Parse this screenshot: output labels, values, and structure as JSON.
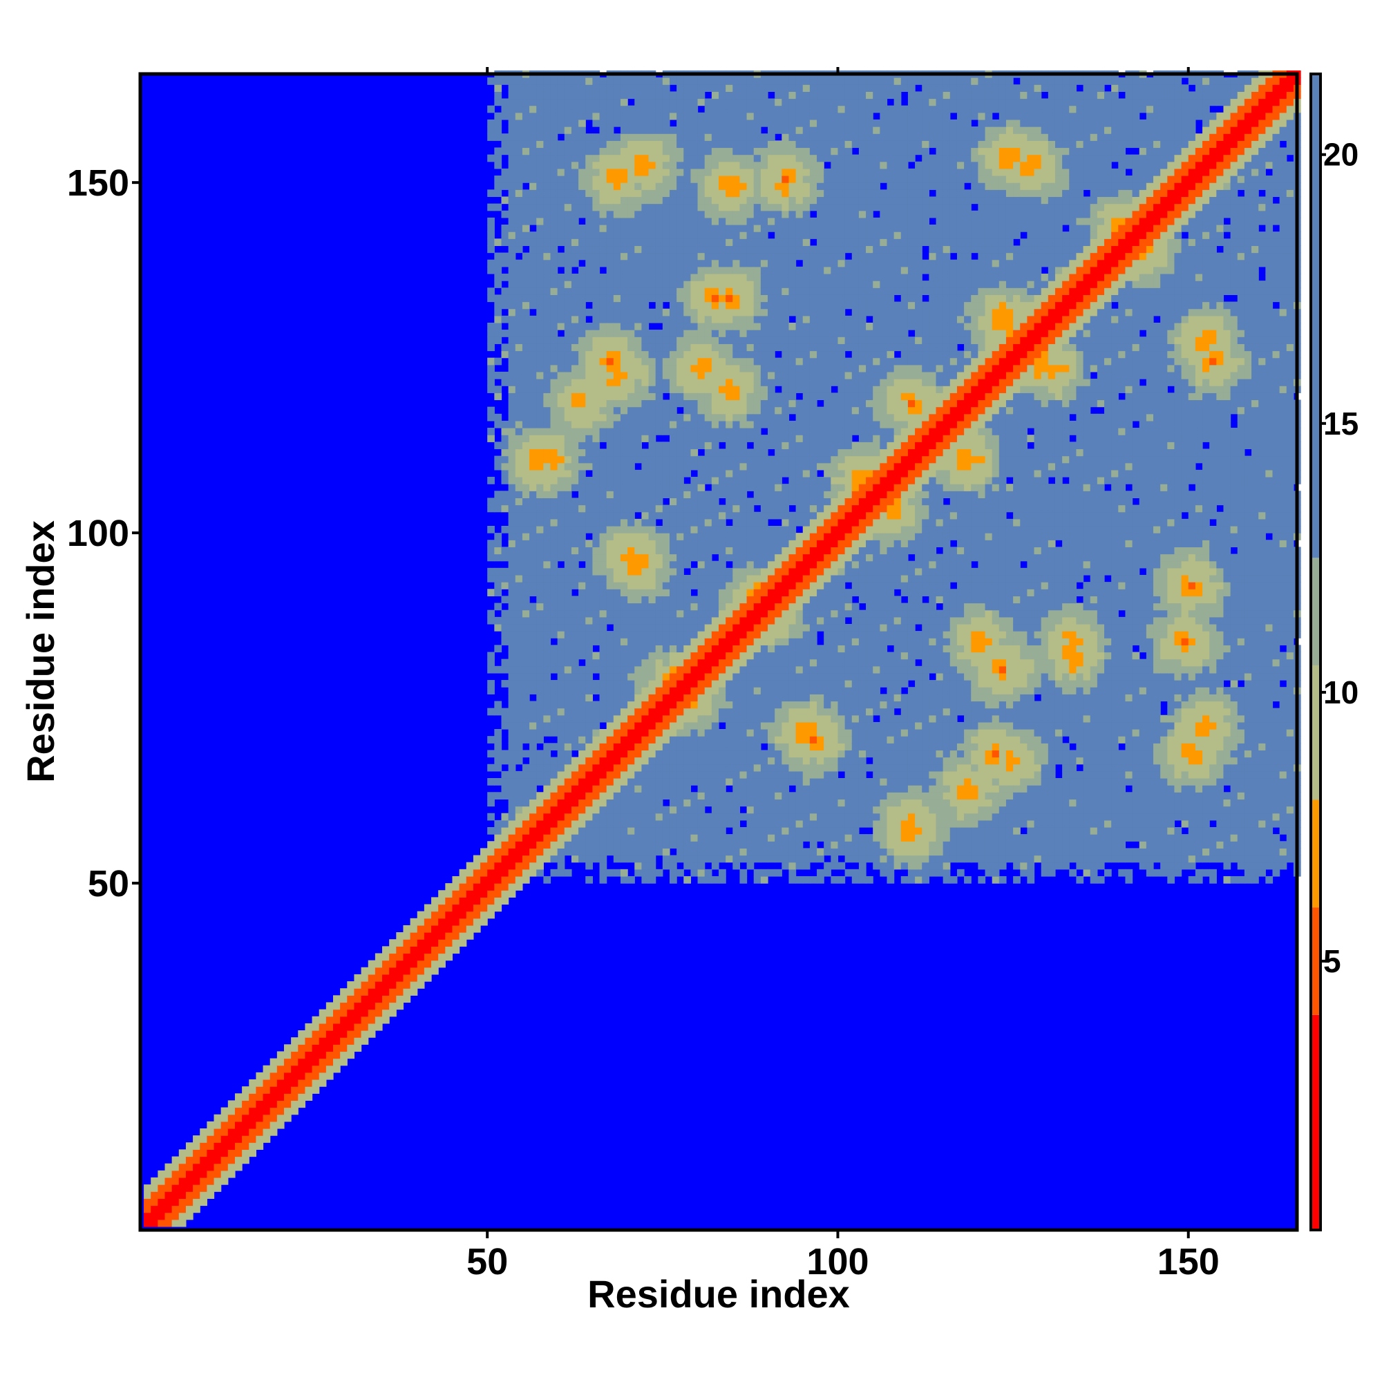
{
  "chart_data": {
    "type": "heatmap",
    "title": "",
    "xlabel": "Residue index",
    "ylabel": "Residue index",
    "n_residues": 165,
    "xlim": [
      1,
      165
    ],
    "ylim": [
      1,
      165
    ],
    "x_ticks": [
      50,
      100,
      150
    ],
    "y_ticks": [
      50,
      100,
      150
    ],
    "colorbar": {
      "ticks": [
        5,
        10,
        15,
        20
      ],
      "range": [
        0,
        21.5
      ],
      "placement": "right",
      "bands": [
        {
          "max": 4,
          "color": "#ff0000"
        },
        {
          "max": 6,
          "color": "#ff5500"
        },
        {
          "max": 8,
          "color": "#ff9900"
        },
        {
          "max": 10.5,
          "color": "#b4bc88"
        },
        {
          "max": 12.5,
          "color": "#97ad96"
        },
        {
          "max": 21.5,
          "color": "#5a81b9"
        },
        {
          "max": 999,
          "color": "#0000ff"
        }
      ]
    },
    "compact_region": {
      "start": 50,
      "end": 165
    },
    "contact_clusters": [
      {
        "x": 68,
        "y": 122
      },
      {
        "x": 63,
        "y": 118
      },
      {
        "x": 80,
        "y": 123
      },
      {
        "x": 84,
        "y": 133
      },
      {
        "x": 70,
        "y": 96
      },
      {
        "x": 57,
        "y": 110
      },
      {
        "x": 72,
        "y": 152
      },
      {
        "x": 92,
        "y": 150
      },
      {
        "x": 95,
        "y": 71
      },
      {
        "x": 103,
        "y": 107
      },
      {
        "x": 110,
        "y": 58
      },
      {
        "x": 124,
        "y": 67
      },
      {
        "x": 133,
        "y": 82
      },
      {
        "x": 149,
        "y": 84
      },
      {
        "x": 150,
        "y": 68
      },
      {
        "x": 124,
        "y": 128
      },
      {
        "x": 130,
        "y": 123
      },
      {
        "x": 140,
        "y": 143
      },
      {
        "x": 120,
        "y": 84
      },
      {
        "x": 118,
        "y": 110
      },
      {
        "x": 88,
        "y": 90
      },
      {
        "x": 78,
        "y": 76
      },
      {
        "x": 33,
        "y": 35
      },
      {
        "x": 18,
        "y": 19
      },
      {
        "x": 153,
        "y": 124
      },
      {
        "x": 127,
        "y": 152
      }
    ]
  }
}
